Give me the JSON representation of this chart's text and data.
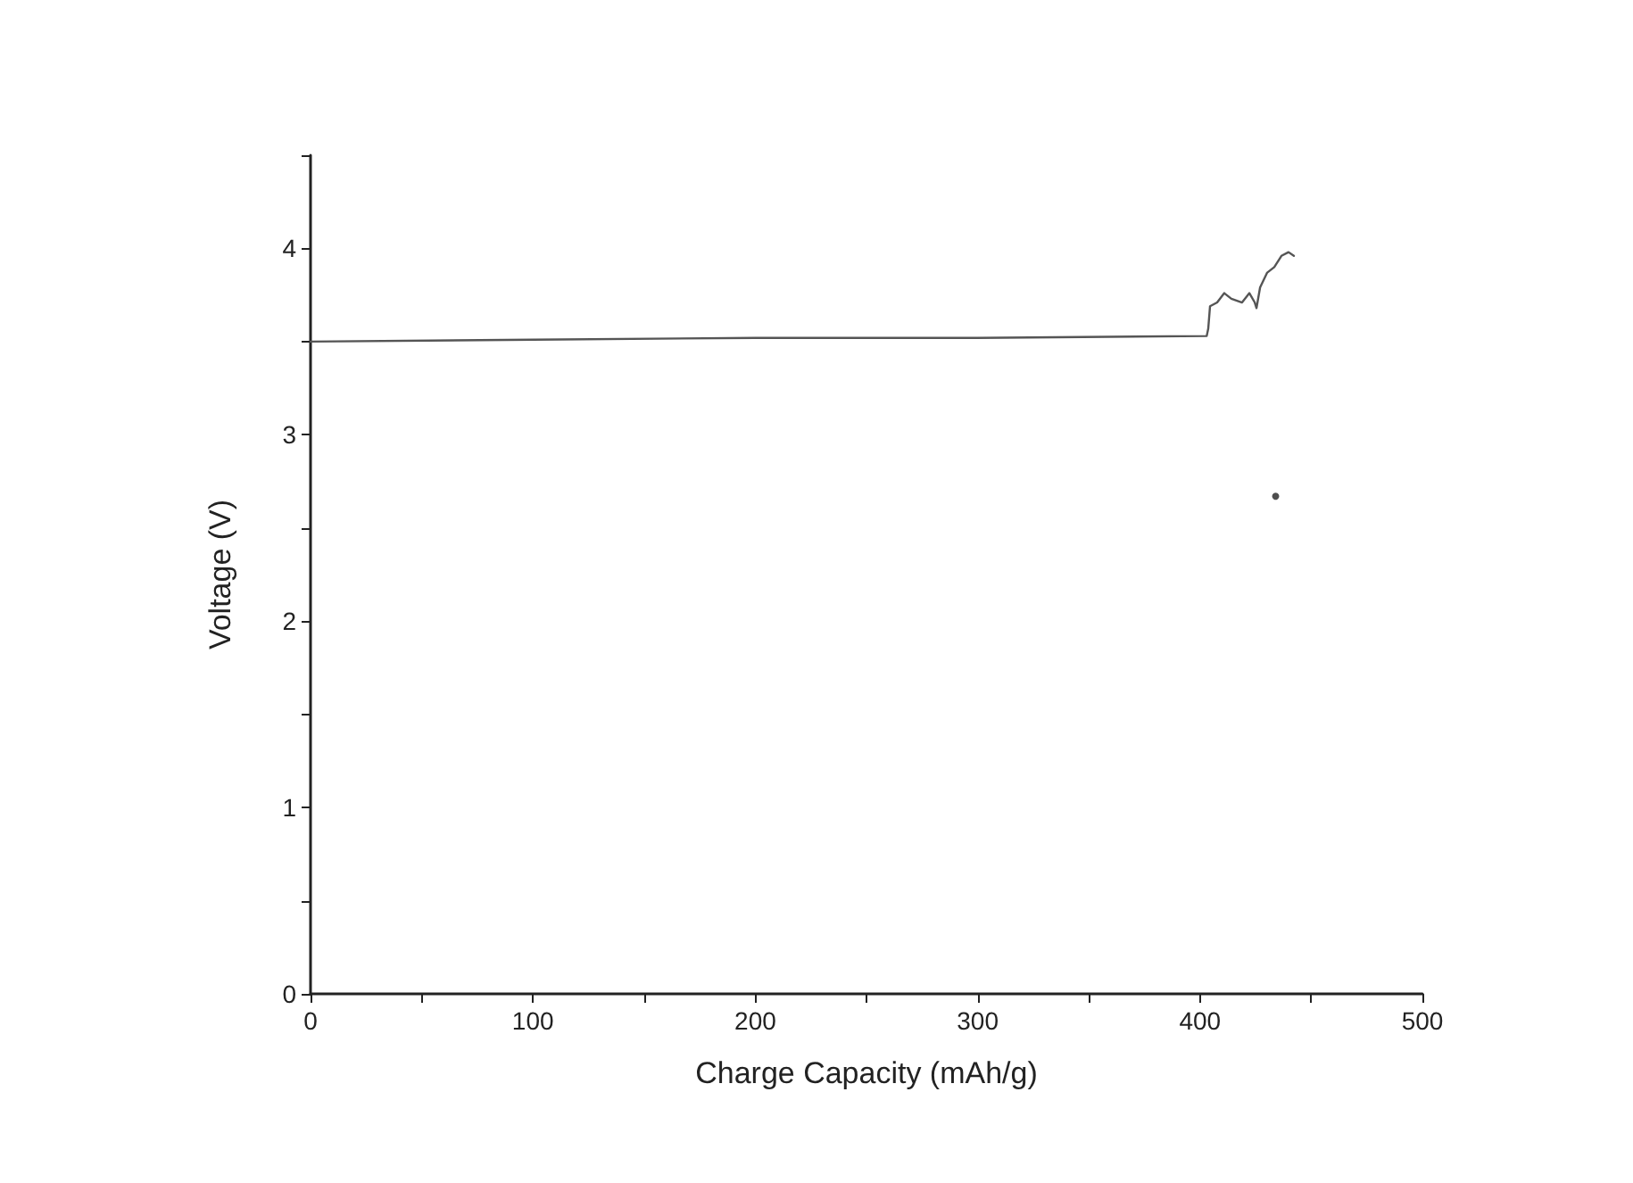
{
  "chart_data": {
    "type": "line",
    "xlabel": "Charge Capacity (mAh/g)",
    "ylabel": "Voltage (V)",
    "xlim": [
      0,
      500
    ],
    "xticks": [
      0,
      {
        "value": 50,
        "label": null
      },
      100,
      {
        "value": 150,
        "label": null
      },
      200,
      {
        "value": 250,
        "label": null
      },
      300,
      {
        "value": 350,
        "label": null
      },
      400,
      {
        "value": 450,
        "label": null
      },
      500
    ],
    "ylim": [
      0,
      4.5
    ],
    "yticks": [
      0,
      {
        "value": 0.5,
        "label": null
      },
      1,
      {
        "value": 1.5,
        "label": null
      },
      2,
      {
        "value": 2.5,
        "label": null
      },
      3,
      {
        "value": 3.5,
        "label": null
      },
      4,
      {
        "value": 4.5,
        "label": null
      }
    ],
    "grid": false,
    "marker": "none",
    "line_style": "solid",
    "series": [
      {
        "color": "#555555",
        "x": [
          0,
          100,
          200,
          300,
          403,
          403.7,
          404.5,
          407.7,
          410.9,
          414.1,
          418.9,
          422.2,
          424.6,
          425.4,
          427,
          430.2,
          433.4,
          436.6,
          439.8,
          442.2
        ],
        "values": [
          3.5,
          3.51,
          3.52,
          3.52,
          3.53,
          3.57,
          3.69,
          3.71,
          3.76,
          3.73,
          3.71,
          3.76,
          3.71,
          3.68,
          3.79,
          3.87,
          3.9,
          3.96,
          3.98,
          3.96
        ]
      },
      {
        "type": "scatter",
        "marker": "circle",
        "color": "#222222",
        "x": [
          434
        ],
        "values": [
          2.67
        ]
      }
    ]
  }
}
